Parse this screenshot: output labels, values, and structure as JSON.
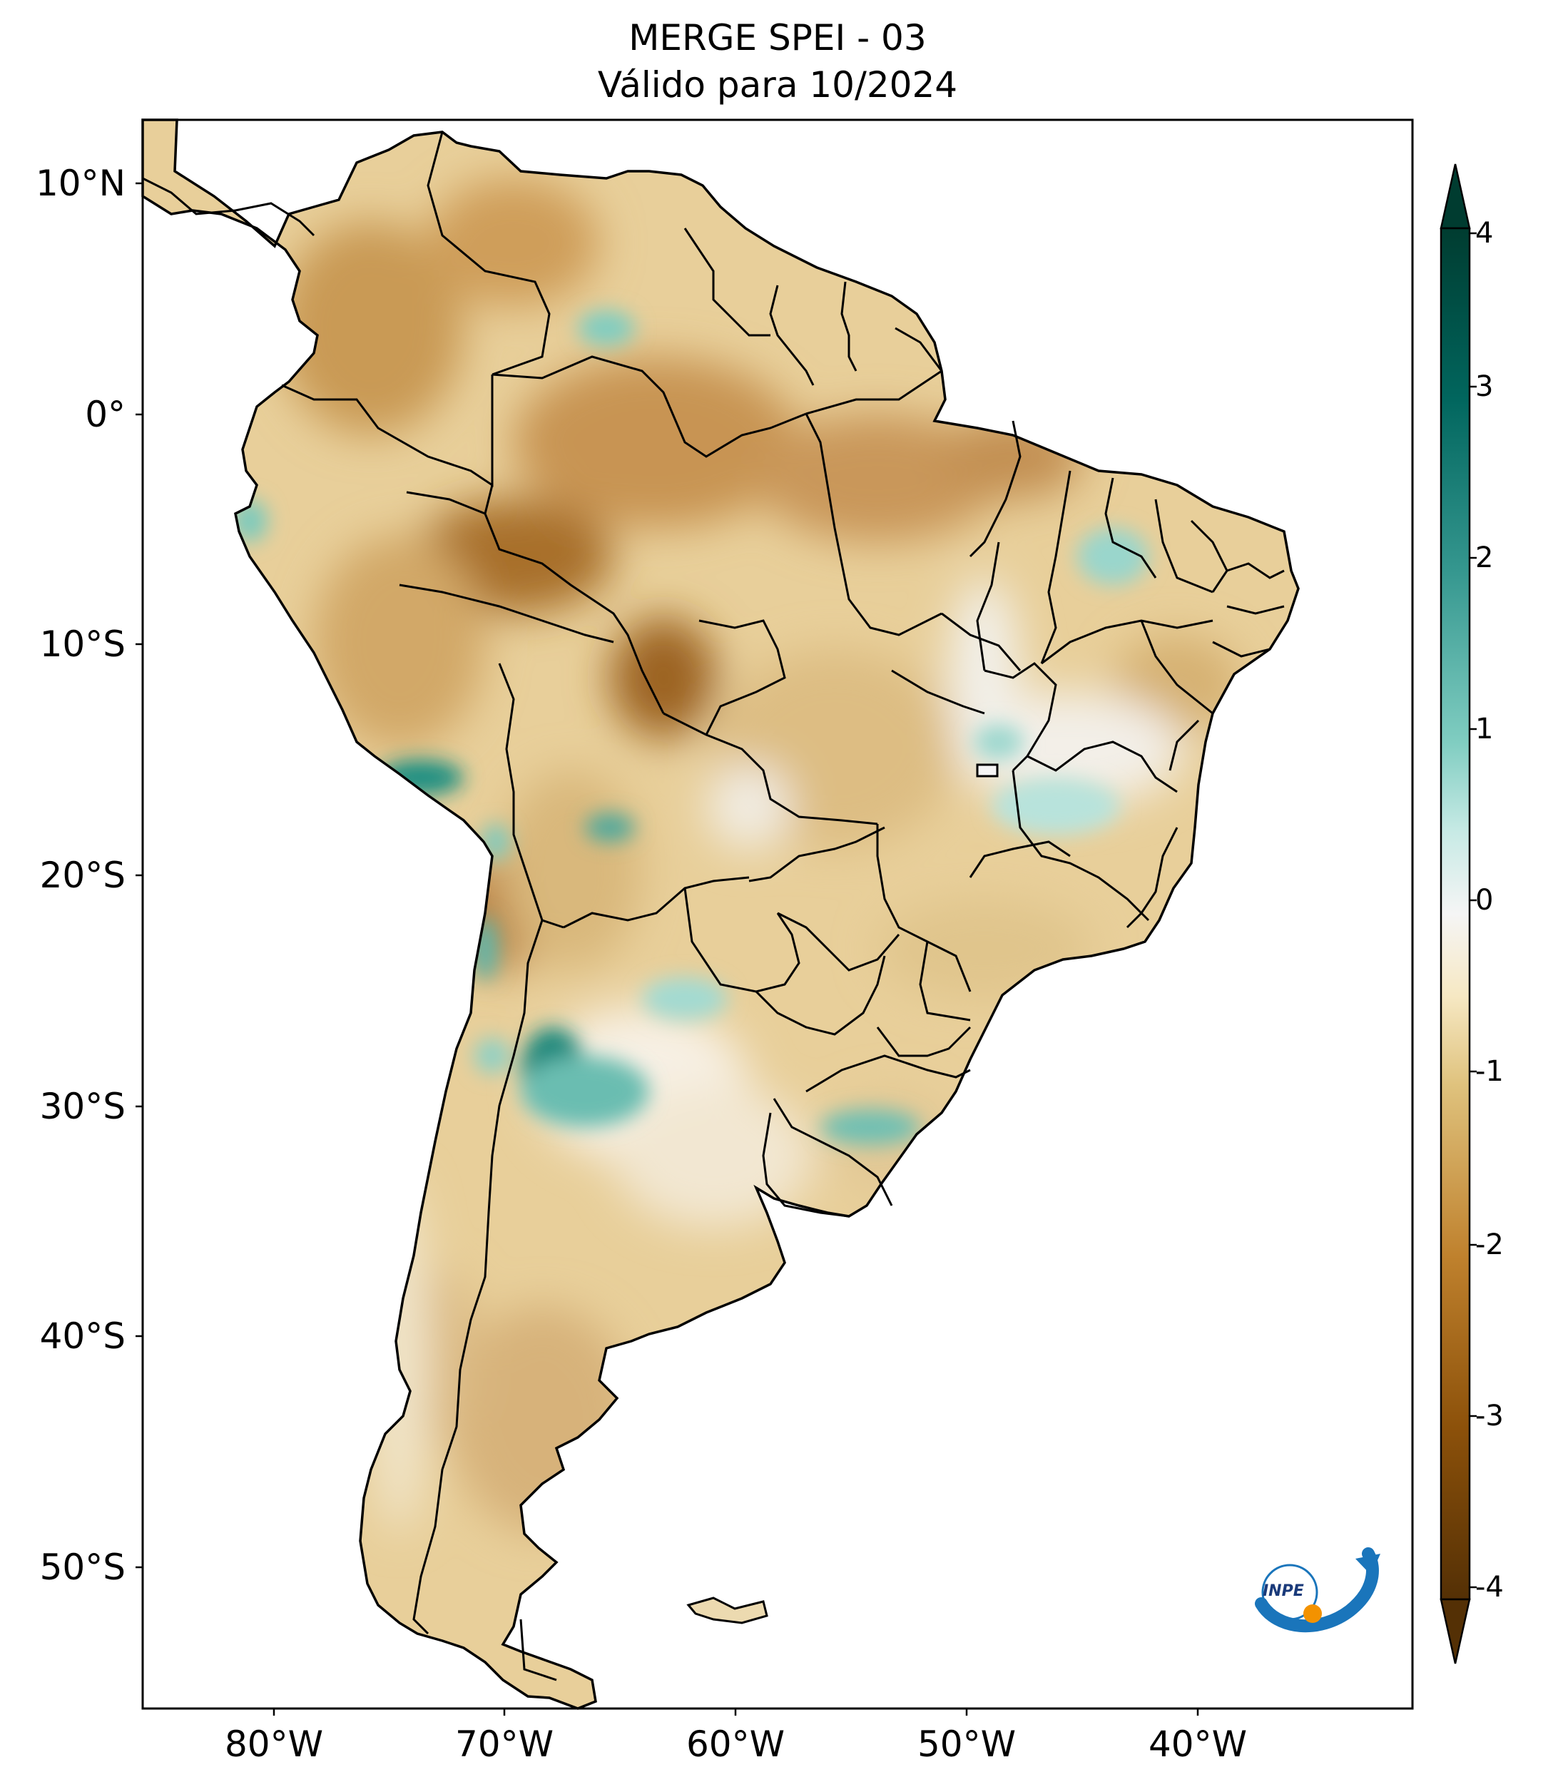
{
  "title": {
    "line1": "MERGE   SPEI - 03",
    "line2": "Válido para 10/2024"
  },
  "map": {
    "region": "South America",
    "latitude_ticks": [
      "10°N",
      "0°",
      "10°S",
      "20°S",
      "30°S",
      "40°S",
      "50°S"
    ],
    "longitude_ticks": [
      "80°W",
      "70°W",
      "60°W",
      "50°W",
      "40°W"
    ]
  },
  "colorbar": {
    "ticks": [
      "4",
      "3",
      "2",
      "1",
      "0",
      "-1",
      "-2",
      "-3",
      "-4"
    ],
    "range": [
      -4,
      4
    ],
    "extend": "both",
    "colors": {
      "min": "#543005",
      "dry_strong": "#8c510a",
      "dry": "#bf812d",
      "dry_light": "#dfc27d",
      "dry_pale": "#f6e8c3",
      "neutral": "#f5f5f5",
      "wet_pale": "#c7eae5",
      "wet_light": "#80cdc1",
      "wet": "#35978f",
      "wet_strong": "#01665e",
      "max": "#003c30"
    }
  },
  "logo": {
    "text": "INPE",
    "color_blue": "#1a75bb",
    "color_orange": "#f39200"
  }
}
